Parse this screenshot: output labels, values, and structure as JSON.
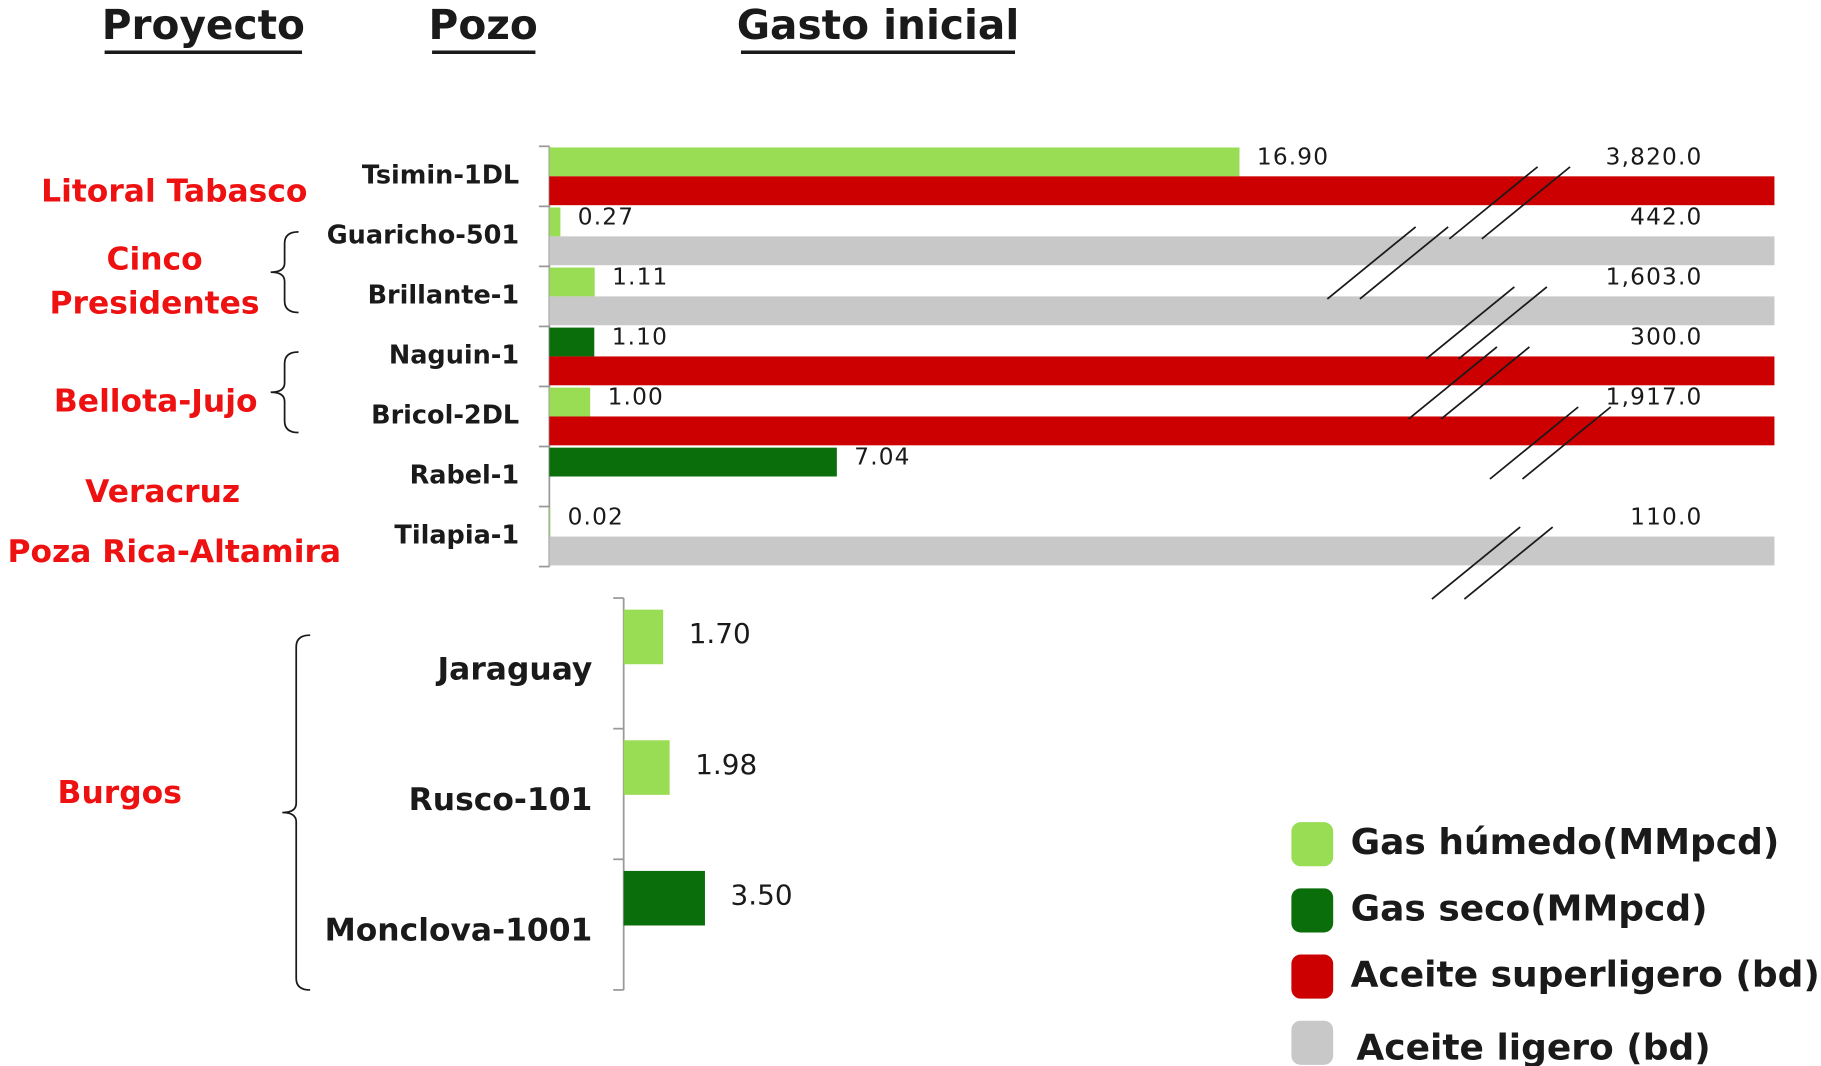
{
  "headers": [
    "Proyecto",
    "Pozo",
    "Gasto inicial"
  ],
  "chart_data": [
    {
      "type": "bar",
      "orientation": "horizontal",
      "categories": [
        "Tsimin-1DL",
        "Guaricho-501",
        "Brillante-1",
        "Naguin-1",
        "Bricol-2DL",
        "Rabel-1",
        "Tilapia-1"
      ],
      "groups": [
        [
          "Litoral Tabasco"
        ],
        [
          "Cinco",
          "Presidentes"
        ],
        [
          "Bellota-Jujo"
        ],
        [
          "Veracruz"
        ],
        [
          "Poza Rica-Altamira"
        ]
      ],
      "xlim": [
        0,
        30
      ],
      "series": [
        {
          "name": "Gas húmedo(MMpcd)",
          "color": "#99dd55",
          "values": [
            16.9,
            0.27,
            1.11,
            null,
            1.0,
            null,
            0.02
          ],
          "value_labels": [
            "16.90",
            "0.27",
            "1.11",
            null,
            "1.00",
            null,
            "0.02"
          ]
        },
        {
          "name": "Gas seco(MMpcd)",
          "color": "#0a6e0a",
          "values": [
            null,
            null,
            null,
            1.1,
            null,
            7.04,
            null
          ],
          "value_labels": [
            null,
            null,
            null,
            "1.10",
            null,
            "7.04",
            null
          ]
        },
        {
          "name": "Aceite superligero (bd)",
          "color": "#cc0000",
          "broken": true,
          "values": [
            3820,
            null,
            null,
            300,
            1917,
            null,
            null
          ],
          "value_labels": [
            "3,820.0",
            null,
            null,
            "300.0",
            "1,917.0",
            null,
            null
          ]
        },
        {
          "name": "Aceite ligero (bd)",
          "color": "#c8c8c8",
          "broken": true,
          "values": [
            null,
            442,
            1603,
            null,
            null,
            null,
            110
          ],
          "value_labels": [
            null,
            "442.0",
            "1,603.0",
            null,
            null,
            null,
            "110.0"
          ]
        }
      ],
      "legend": "bottom-right"
    },
    {
      "type": "bar",
      "orientation": "horizontal",
      "categories": [
        "Jaraguay",
        "Rusco-101",
        "Monclova-1001"
      ],
      "groups": [
        [
          "Burgos"
        ]
      ],
      "xlim": [
        0,
        50
      ],
      "series": [
        {
          "name": "Gas húmedo(MMpcd)",
          "color": "#99dd55",
          "values": [
            1.7,
            1.98,
            null
          ],
          "value_labels": [
            "1.70",
            "1.98",
            null
          ]
        },
        {
          "name": "Gas seco(MMpcd)",
          "color": "#0a6e0a",
          "values": [
            null,
            null,
            3.5
          ],
          "value_labels": [
            null,
            null,
            "3.50"
          ]
        }
      ]
    }
  ]
}
